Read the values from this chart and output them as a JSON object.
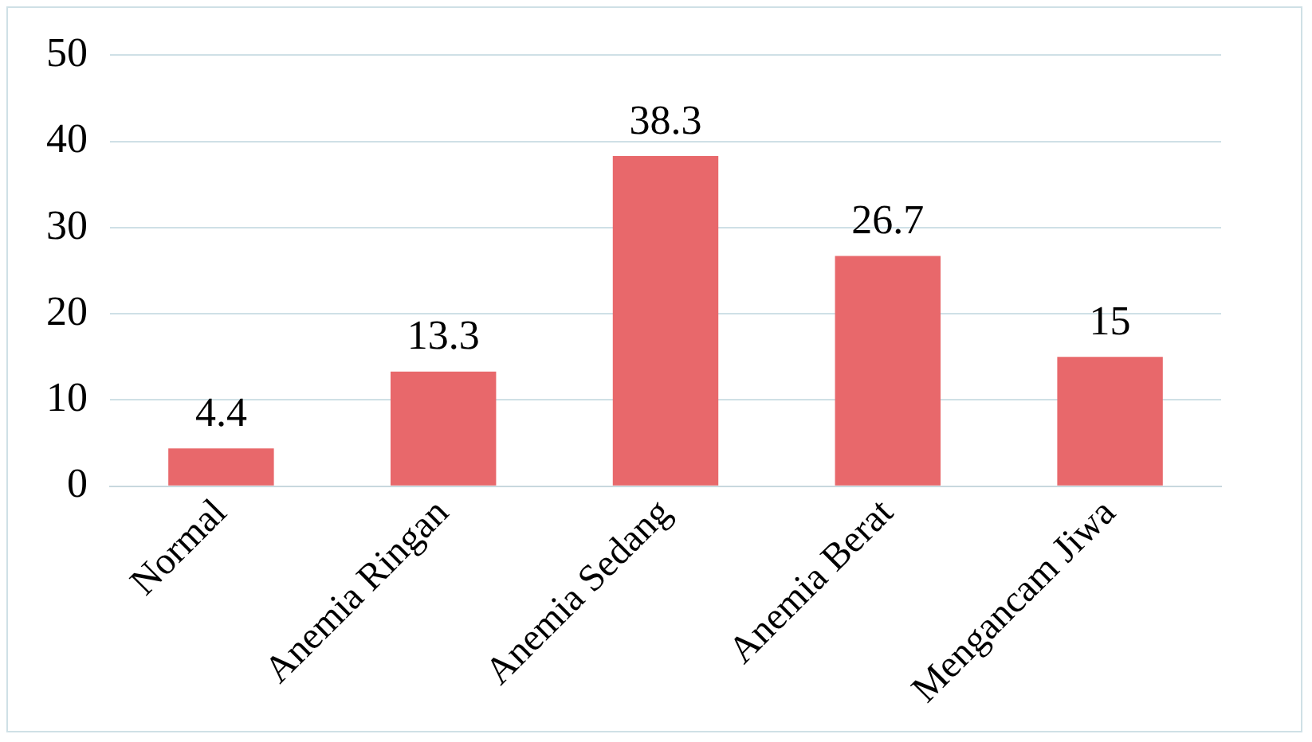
{
  "chart_data": {
    "type": "bar",
    "categories": [
      "Normal",
      "Anemia Ringan",
      "Anemia Sedang",
      "Anemia Berat",
      "Mengancam Jiwa"
    ],
    "values": [
      4.4,
      13.3,
      38.3,
      26.7,
      15
    ],
    "color": "#e8686b",
    "ylim": [
      0,
      50
    ],
    "yticks": [
      0,
      10,
      20,
      30,
      40,
      50
    ],
    "grid": "y",
    "data_labels": true,
    "legend": false
  }
}
